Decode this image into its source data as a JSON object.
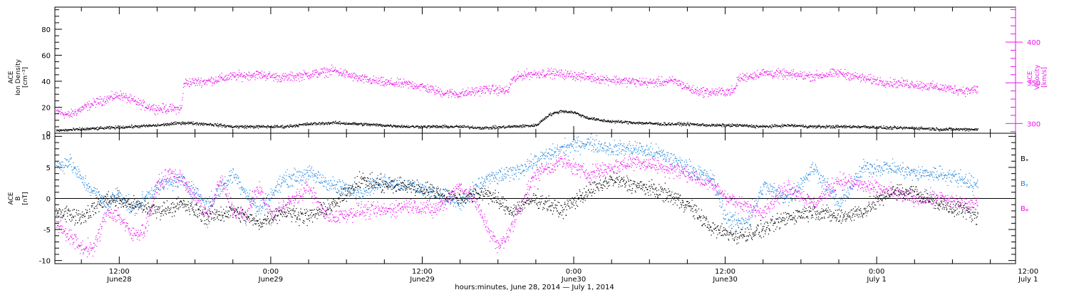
{
  "chart_data": [
    {
      "type": "scatter",
      "title": "",
      "xlabel": "hours:minutes, June 28, 2014 — July  1, 2014",
      "xlim_hours_from_jun28_00": [
        6.9,
        83.0
      ],
      "x_ticks": [
        {
          "time": "12:00",
          "date": "June28"
        },
        {
          "time": "0:00",
          "date": "June29"
        },
        {
          "time": "12:00",
          "date": "June29"
        },
        {
          "time": "0:00",
          "date": "June30"
        },
        {
          "time": "12:00",
          "date": "June30"
        },
        {
          "time": "0:00",
          "date": "July 1"
        },
        {
          "time": "12:00",
          "date": "July 1"
        }
      ],
      "left_axis": {
        "label_lines": [
          "ACE",
          "Ion Density",
          "[cm⁻³]"
        ],
        "ylim": [
          0,
          97
        ],
        "ticks": [
          "0",
          "20",
          "40",
          "60",
          "80"
        ],
        "color": "#000000"
      },
      "right_axis": {
        "label_lines": [
          "ACE",
          "Velocity",
          "[km/s]"
        ],
        "ylim": [
          288,
          443
        ],
        "ticks": [
          "300",
          "350",
          "400"
        ],
        "color": "#ee11ee"
      },
      "series": [
        {
          "name": "Ion Density",
          "axis": "left",
          "color": "#000000",
          "points": [
            [
              7,
              2
            ],
            [
              9,
              3
            ],
            [
              11,
              4
            ],
            [
              13,
              5
            ],
            [
              15,
              6
            ],
            [
              17,
              8
            ],
            [
              19,
              7
            ],
            [
              21,
              5
            ],
            [
              23,
              5
            ],
            [
              25,
              5
            ],
            [
              27,
              7
            ],
            [
              29,
              8
            ],
            [
              31,
              7
            ],
            [
              33,
              6
            ],
            [
              35,
              5
            ],
            [
              37,
              5
            ],
            [
              39,
              5
            ],
            [
              41,
              4
            ],
            [
              43,
              5
            ],
            [
              45,
              6
            ],
            [
              46,
              14
            ],
            [
              47,
              17
            ],
            [
              48,
              16
            ],
            [
              49,
              12
            ],
            [
              50,
              10
            ],
            [
              51,
              9
            ],
            [
              53,
              8
            ],
            [
              55,
              7
            ],
            [
              57,
              7
            ],
            [
              59,
              6
            ],
            [
              61,
              6
            ],
            [
              63,
              5
            ],
            [
              65,
              6
            ],
            [
              67,
              5
            ],
            [
              69,
              5
            ],
            [
              71,
              5
            ],
            [
              73,
              4
            ],
            [
              75,
              4
            ],
            [
              77,
              3
            ],
            [
              79,
              3
            ],
            [
              80,
              3
            ]
          ]
        },
        {
          "name": "Velocity",
          "axis": "right",
          "color": "#ee11ee",
          "points": [
            [
              7,
              315
            ],
            [
              8,
              310
            ],
            [
              9,
              318
            ],
            [
              10,
              325
            ],
            [
              11,
              330
            ],
            [
              12,
              335
            ],
            [
              13,
              328
            ],
            [
              14,
              322
            ],
            [
              15,
              318
            ],
            [
              16,
              318
            ],
            [
              16.9,
              318
            ],
            [
              17.1,
              350
            ],
            [
              19,
              352
            ],
            [
              21,
              358
            ],
            [
              23,
              360
            ],
            [
              25,
              356
            ],
            [
              27,
              360
            ],
            [
              29,
              365
            ],
            [
              31,
              355
            ],
            [
              33,
              350
            ],
            [
              35,
              348
            ],
            [
              36,
              345
            ],
            [
              37.5,
              338
            ],
            [
              39,
              336
            ],
            [
              41,
              342
            ],
            [
              42.8,
              340
            ],
            [
              43,
              352
            ],
            [
              44,
              360
            ],
            [
              46,
              362
            ],
            [
              48,
              359
            ],
            [
              50,
              355
            ],
            [
              52,
              352
            ],
            [
              54,
              350
            ],
            [
              56,
              352
            ],
            [
              57.5,
              340
            ],
            [
              59,
              338
            ],
            [
              60.7,
              340
            ],
            [
              61,
              355
            ],
            [
              63,
              362
            ],
            [
              65,
              360
            ],
            [
              67,
              358
            ],
            [
              69,
              362
            ],
            [
              71,
              355
            ],
            [
              73,
              350
            ],
            [
              75,
              348
            ],
            [
              77,
              344
            ],
            [
              79,
              340
            ],
            [
              80,
              342
            ]
          ]
        }
      ]
    },
    {
      "type": "scatter",
      "title": "",
      "xlim_hours_from_jun28_00": [
        6.9,
        83.0
      ],
      "y_axis": {
        "label_lines": [
          "ACE",
          "B",
          "[nT]"
        ],
        "ylim": [
          -10.5,
          10.5
        ],
        "ticks": [
          "-10",
          "-5",
          "0",
          "5",
          "10"
        ]
      },
      "legend_placement": "right",
      "series": [
        {
          "name": "Bₓ",
          "color": "#000000",
          "points": [
            [
              7,
              -2
            ],
            [
              9,
              -3
            ],
            [
              11,
              0
            ],
            [
              13,
              -1
            ],
            [
              15,
              -2
            ],
            [
              17,
              -1
            ],
            [
              19,
              -3
            ],
            [
              21,
              -2
            ],
            [
              23,
              -4
            ],
            [
              25,
              -2
            ],
            [
              27,
              -3
            ],
            [
              29,
              -1
            ],
            [
              31,
              3
            ],
            [
              33,
              2
            ],
            [
              35,
              2
            ],
            [
              37,
              1
            ],
            [
              39,
              0
            ],
            [
              41,
              1
            ],
            [
              43,
              -2
            ],
            [
              45,
              0
            ],
            [
              47,
              -2
            ],
            [
              49,
              1
            ],
            [
              51,
              3
            ],
            [
              53,
              2
            ],
            [
              55,
              1
            ],
            [
              57,
              -1
            ],
            [
              59,
              -5
            ],
            [
              61,
              -6
            ],
            [
              63,
              -5
            ],
            [
              65,
              -3
            ],
            [
              67,
              -2
            ],
            [
              69,
              -3
            ],
            [
              71,
              -2
            ],
            [
              73,
              1
            ],
            [
              75,
              1
            ],
            [
              77,
              -1
            ],
            [
              79,
              -2
            ],
            [
              80,
              -3
            ]
          ]
        },
        {
          "name": "Bᵧ",
          "color": "#1a84e0",
          "points": [
            [
              7,
              5
            ],
            [
              8,
              6
            ],
            [
              9,
              3
            ],
            [
              11,
              -1
            ],
            [
              12,
              1
            ],
            [
              13,
              -2
            ],
            [
              15,
              2
            ],
            [
              17,
              3
            ],
            [
              19,
              -1
            ],
            [
              21,
              4
            ],
            [
              23,
              -2
            ],
            [
              25,
              3
            ],
            [
              27,
              4
            ],
            [
              29,
              2
            ],
            [
              31,
              1
            ],
            [
              33,
              3
            ],
            [
              35,
              2
            ],
            [
              37,
              1
            ],
            [
              39,
              -1
            ],
            [
              41,
              3
            ],
            [
              43,
              4
            ],
            [
              45,
              6
            ],
            [
              47,
              8
            ],
            [
              49,
              9
            ],
            [
              51,
              8
            ],
            [
              53,
              8
            ],
            [
              55,
              7
            ],
            [
              57,
              5
            ],
            [
              59,
              3
            ],
            [
              60,
              -3
            ],
            [
              61,
              -4
            ],
            [
              62,
              -3
            ],
            [
              63,
              2
            ],
            [
              65,
              0
            ],
            [
              67,
              5
            ],
            [
              69,
              -1
            ],
            [
              71,
              5
            ],
            [
              73,
              5
            ],
            [
              75,
              4
            ],
            [
              77,
              4
            ],
            [
              79,
              3
            ],
            [
              80,
              2
            ]
          ]
        },
        {
          "name": "Bᵩ",
          "color": "#ee11ee",
          "points": [
            [
              7,
              -4
            ],
            [
              8,
              -6
            ],
            [
              9,
              -8
            ],
            [
              10,
              -8
            ],
            [
              11,
              -2
            ],
            [
              12,
              -3
            ],
            [
              13,
              -6
            ],
            [
              14,
              -5
            ],
            [
              15,
              2
            ],
            [
              16,
              4
            ],
            [
              17,
              3
            ],
            [
              18,
              0
            ],
            [
              19,
              -3
            ],
            [
              20,
              3
            ],
            [
              21,
              -2
            ],
            [
              22,
              -3
            ],
            [
              23,
              2
            ],
            [
              24,
              -3
            ],
            [
              25,
              -1
            ],
            [
              26,
              0
            ],
            [
              27,
              2
            ],
            [
              28,
              -2
            ],
            [
              29,
              -3
            ],
            [
              31,
              -2
            ],
            [
              33,
              -2
            ],
            [
              35,
              -1
            ],
            [
              37,
              -2
            ],
            [
              39,
              2
            ],
            [
              40,
              0
            ],
            [
              41,
              -4
            ],
            [
              42,
              -8
            ],
            [
              43,
              -5
            ],
            [
              44,
              0
            ],
            [
              45,
              4
            ],
            [
              47,
              6
            ],
            [
              49,
              4
            ],
            [
              51,
              5
            ],
            [
              53,
              6
            ],
            [
              55,
              5
            ],
            [
              57,
              4
            ],
            [
              59,
              2
            ],
            [
              61,
              -1
            ],
            [
              63,
              -2
            ],
            [
              65,
              2
            ],
            [
              67,
              -1
            ],
            [
              69,
              3
            ],
            [
              71,
              2
            ],
            [
              73,
              1
            ],
            [
              75,
              0
            ],
            [
              77,
              0
            ],
            [
              79,
              -1
            ],
            [
              80,
              -1
            ]
          ]
        }
      ]
    }
  ]
}
